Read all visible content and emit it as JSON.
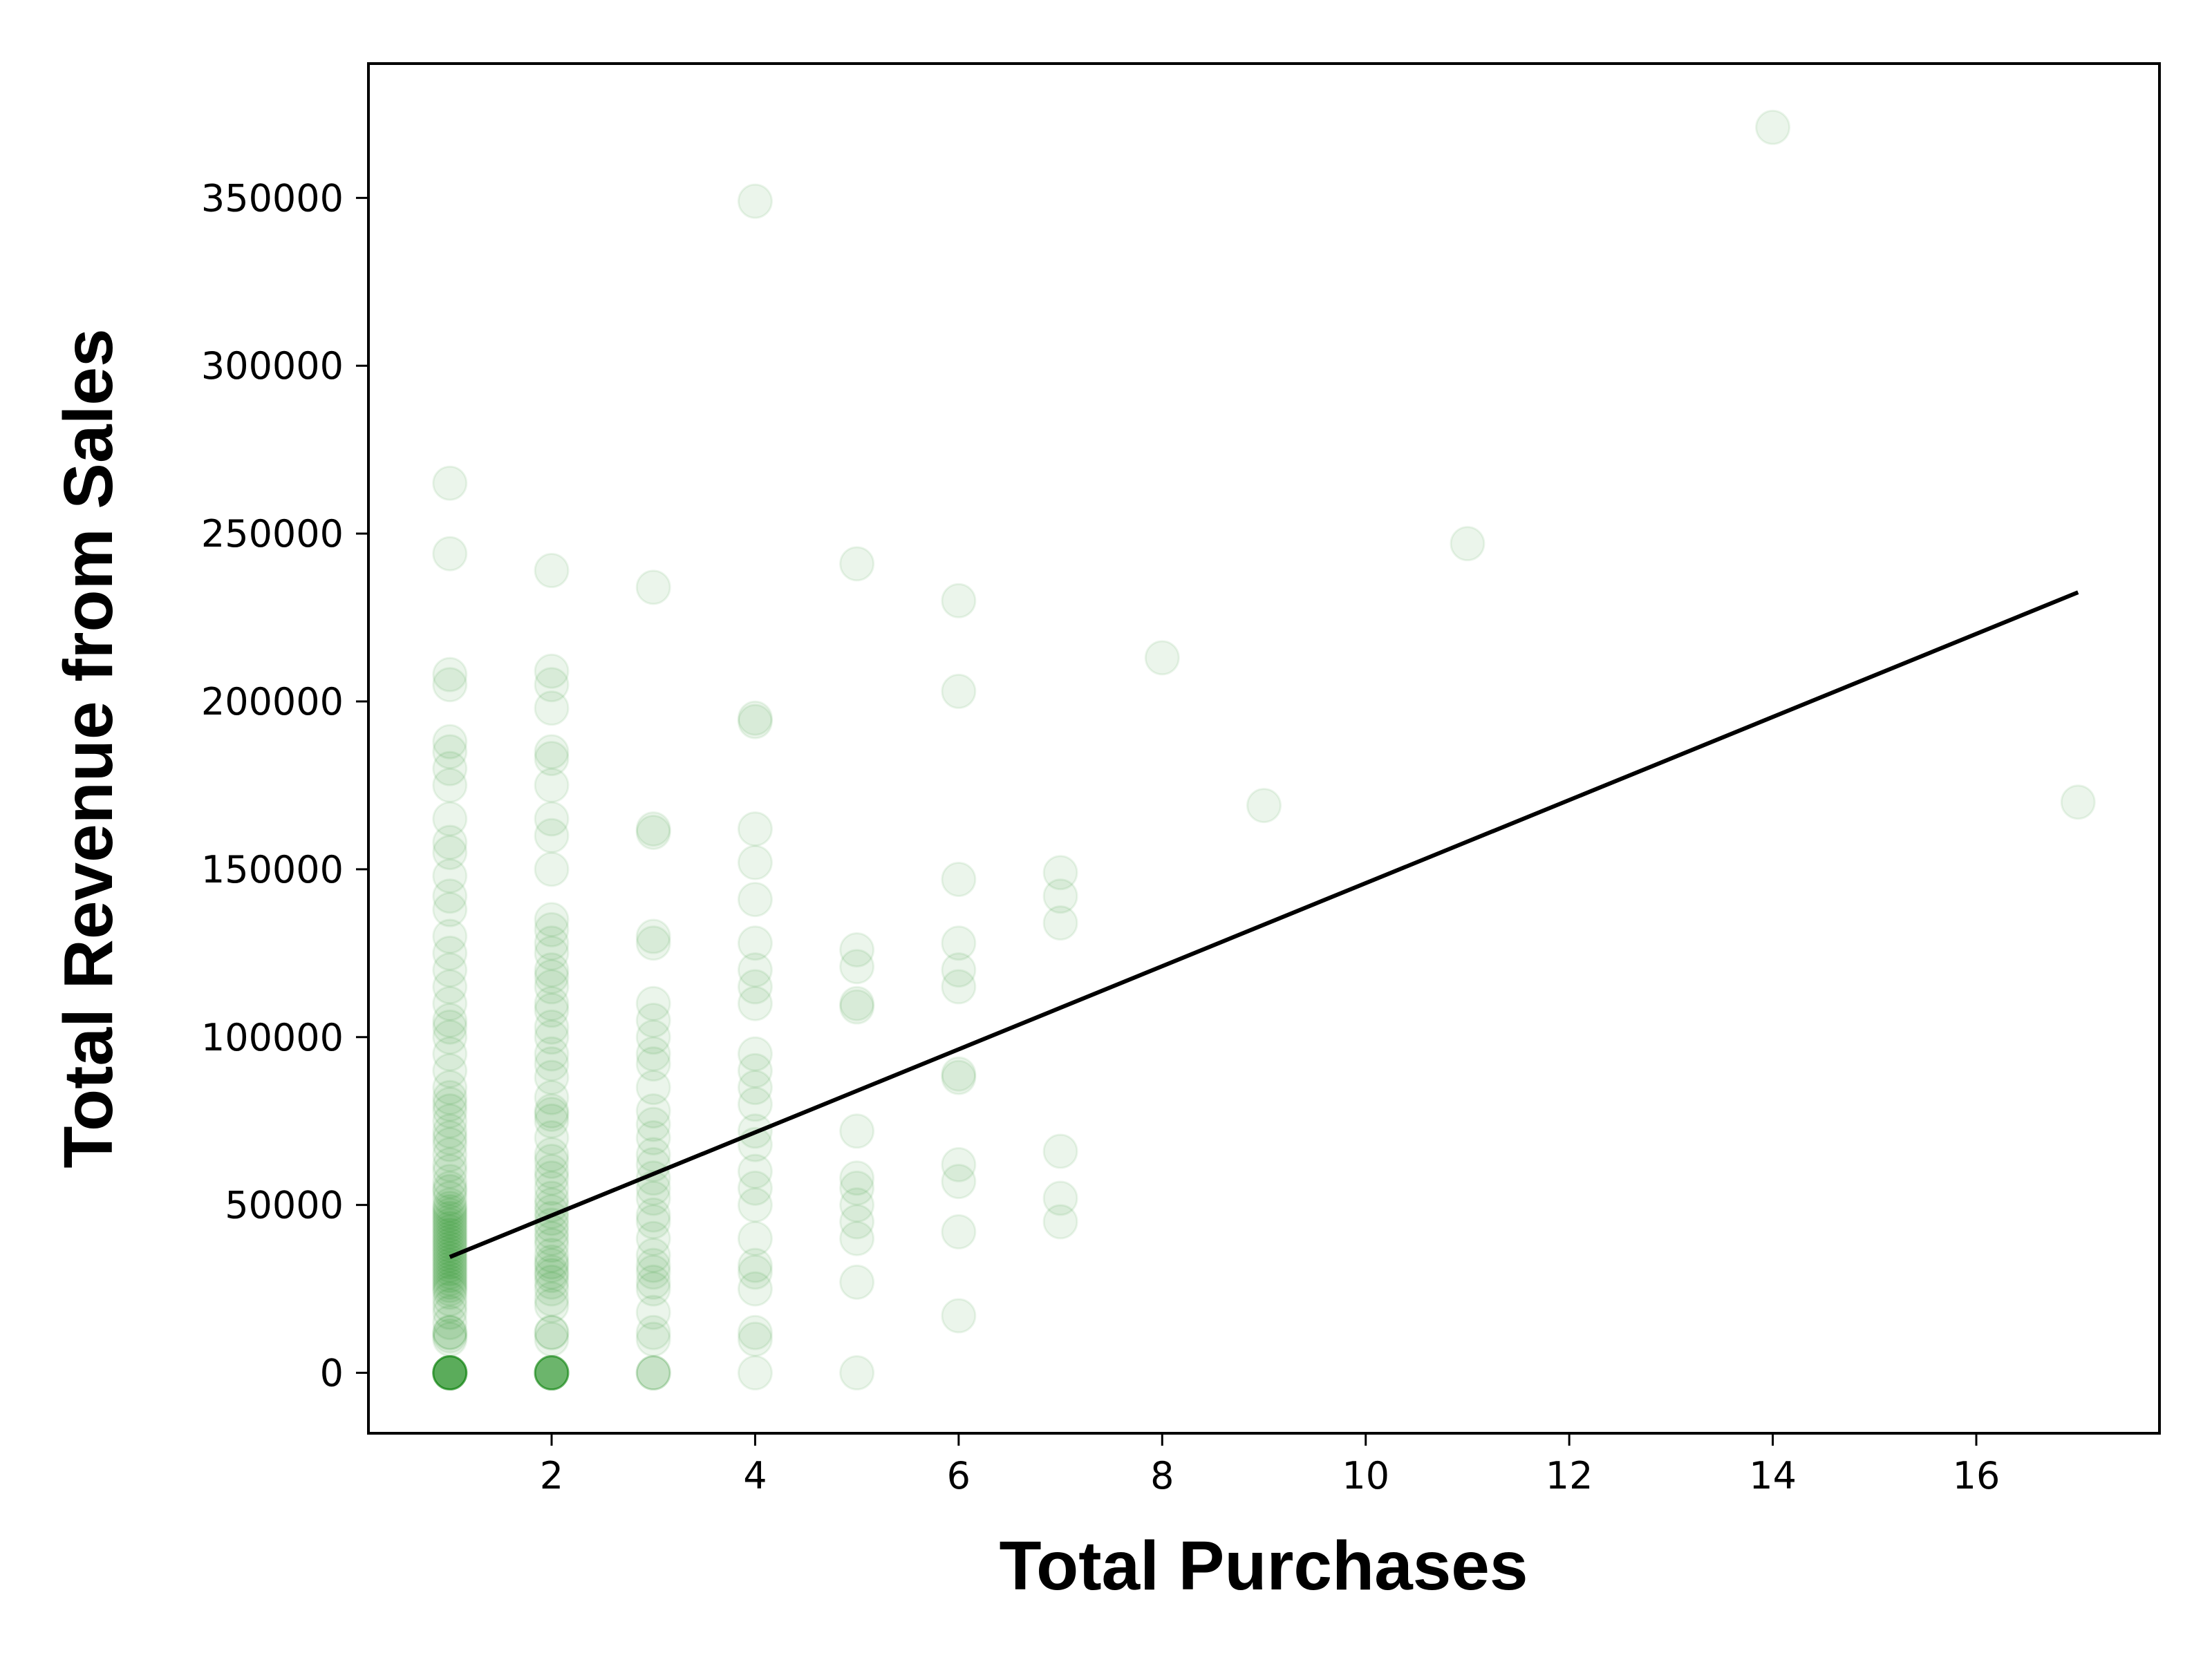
{
  "chart_data": {
    "type": "scatter",
    "title": "",
    "xlabel": "Total Purchases",
    "ylabel": "Total Revenue from Sales",
    "xlim": [
      0.2,
      17.8
    ],
    "ylim": [
      -18000,
      390000
    ],
    "xticks": [
      2,
      4,
      6,
      8,
      10,
      12,
      14,
      16
    ],
    "yticks": [
      0,
      50000,
      100000,
      150000,
      200000,
      250000,
      300000,
      350000
    ],
    "grid": false,
    "marker_color": "#008000",
    "marker_alpha": 0.08,
    "trend_color": "#000000",
    "series": [
      {
        "values": [
          [
            1,
            0
          ],
          [
            1,
            0
          ],
          [
            1,
            0
          ],
          [
            1,
            0
          ],
          [
            1,
            0
          ],
          [
            1,
            0
          ],
          [
            1,
            0
          ],
          [
            1,
            0
          ],
          [
            1,
            0
          ],
          [
            1,
            0
          ],
          [
            1,
            0
          ],
          [
            1,
            0
          ],
          [
            1,
            10000
          ],
          [
            1,
            11000
          ],
          [
            1,
            12000
          ],
          [
            1,
            12000
          ],
          [
            1,
            15000
          ],
          [
            1,
            18000
          ],
          [
            1,
            20000
          ],
          [
            1,
            22000
          ],
          [
            1,
            24000
          ],
          [
            1,
            25000
          ],
          [
            1,
            26000
          ],
          [
            1,
            27000
          ],
          [
            1,
            28000
          ],
          [
            1,
            29000
          ],
          [
            1,
            30000
          ],
          [
            1,
            31000
          ],
          [
            1,
            32000
          ],
          [
            1,
            33000
          ],
          [
            1,
            34000
          ],
          [
            1,
            35000
          ],
          [
            1,
            36000
          ],
          [
            1,
            37000
          ],
          [
            1,
            38000
          ],
          [
            1,
            39000
          ],
          [
            1,
            40000
          ],
          [
            1,
            41000
          ],
          [
            1,
            42000
          ],
          [
            1,
            43000
          ],
          [
            1,
            44000
          ],
          [
            1,
            45000
          ],
          [
            1,
            46000
          ],
          [
            1,
            47000
          ],
          [
            1,
            48000
          ],
          [
            1,
            49000
          ],
          [
            1,
            50000
          ],
          [
            1,
            52000
          ],
          [
            1,
            54000
          ],
          [
            1,
            55000
          ],
          [
            1,
            57000
          ],
          [
            1,
            60000
          ],
          [
            1,
            62000
          ],
          [
            1,
            65000
          ],
          [
            1,
            68000
          ],
          [
            1,
            70000
          ],
          [
            1,
            72000
          ],
          [
            1,
            75000
          ],
          [
            1,
            78000
          ],
          [
            1,
            80000
          ],
          [
            1,
            82000
          ],
          [
            1,
            85000
          ],
          [
            1,
            90000
          ],
          [
            1,
            95000
          ],
          [
            1,
            100000
          ],
          [
            1,
            103000
          ],
          [
            1,
            105000
          ],
          [
            1,
            110000
          ],
          [
            1,
            115000
          ],
          [
            1,
            120000
          ],
          [
            1,
            125000
          ],
          [
            1,
            130000
          ],
          [
            1,
            138000
          ],
          [
            1,
            142000
          ],
          [
            1,
            148000
          ],
          [
            1,
            155000
          ],
          [
            1,
            158000
          ],
          [
            1,
            165000
          ],
          [
            1,
            175000
          ],
          [
            1,
            180000
          ],
          [
            1,
            185000
          ],
          [
            1,
            188000
          ],
          [
            1,
            205000
          ],
          [
            1,
            208000
          ],
          [
            1,
            244000
          ],
          [
            1,
            265000
          ],
          [
            2,
            0
          ],
          [
            2,
            0
          ],
          [
            2,
            0
          ],
          [
            2,
            0
          ],
          [
            2,
            0
          ],
          [
            2,
            0
          ],
          [
            2,
            0
          ],
          [
            2,
            0
          ],
          [
            2,
            0
          ],
          [
            2,
            0
          ],
          [
            2,
            10000
          ],
          [
            2,
            12000
          ],
          [
            2,
            12000
          ],
          [
            2,
            20000
          ],
          [
            2,
            22000
          ],
          [
            2,
            25000
          ],
          [
            2,
            27000
          ],
          [
            2,
            29000
          ],
          [
            2,
            30000
          ],
          [
            2,
            32000
          ],
          [
            2,
            33000
          ],
          [
            2,
            35000
          ],
          [
            2,
            38000
          ],
          [
            2,
            40000
          ],
          [
            2,
            42000
          ],
          [
            2,
            44000
          ],
          [
            2,
            46000
          ],
          [
            2,
            48000
          ],
          [
            2,
            50000
          ],
          [
            2,
            52000
          ],
          [
            2,
            55000
          ],
          [
            2,
            58000
          ],
          [
            2,
            60000
          ],
          [
            2,
            63000
          ],
          [
            2,
            65000
          ],
          [
            2,
            70000
          ],
          [
            2,
            75000
          ],
          [
            2,
            77000
          ],
          [
            2,
            78000
          ],
          [
            2,
            82000
          ],
          [
            2,
            88000
          ],
          [
            2,
            92000
          ],
          [
            2,
            95000
          ],
          [
            2,
            100000
          ],
          [
            2,
            103000
          ],
          [
            2,
            108000
          ],
          [
            2,
            110000
          ],
          [
            2,
            115000
          ],
          [
            2,
            118000
          ],
          [
            2,
            120000
          ],
          [
            2,
            125000
          ],
          [
            2,
            128000
          ],
          [
            2,
            132000
          ],
          [
            2,
            135000
          ],
          [
            2,
            150000
          ],
          [
            2,
            160000
          ],
          [
            2,
            165000
          ],
          [
            2,
            175000
          ],
          [
            2,
            183000
          ],
          [
            2,
            185000
          ],
          [
            2,
            198000
          ],
          [
            2,
            205000
          ],
          [
            2,
            209000
          ],
          [
            2,
            239000
          ],
          [
            3,
            0
          ],
          [
            3,
            0
          ],
          [
            3,
            0
          ],
          [
            3,
            10000
          ],
          [
            3,
            12000
          ],
          [
            3,
            18000
          ],
          [
            3,
            25000
          ],
          [
            3,
            27000
          ],
          [
            3,
            30000
          ],
          [
            3,
            32000
          ],
          [
            3,
            35000
          ],
          [
            3,
            40000
          ],
          [
            3,
            45000
          ],
          [
            3,
            47000
          ],
          [
            3,
            52000
          ],
          [
            3,
            55000
          ],
          [
            3,
            58000
          ],
          [
            3,
            62000
          ],
          [
            3,
            65000
          ],
          [
            3,
            70000
          ],
          [
            3,
            74000
          ],
          [
            3,
            78000
          ],
          [
            3,
            85000
          ],
          [
            3,
            92000
          ],
          [
            3,
            95000
          ],
          [
            3,
            100000
          ],
          [
            3,
            105000
          ],
          [
            3,
            110000
          ],
          [
            3,
            128000
          ],
          [
            3,
            130000
          ],
          [
            3,
            161000
          ],
          [
            3,
            162000
          ],
          [
            3,
            234000
          ],
          [
            4,
            0
          ],
          [
            4,
            10000
          ],
          [
            4,
            12000
          ],
          [
            4,
            25000
          ],
          [
            4,
            30000
          ],
          [
            4,
            32000
          ],
          [
            4,
            40000
          ],
          [
            4,
            50000
          ],
          [
            4,
            55000
          ],
          [
            4,
            60000
          ],
          [
            4,
            68000
          ],
          [
            4,
            72000
          ],
          [
            4,
            80000
          ],
          [
            4,
            85000
          ],
          [
            4,
            90000
          ],
          [
            4,
            95000
          ],
          [
            4,
            110000
          ],
          [
            4,
            115000
          ],
          [
            4,
            120000
          ],
          [
            4,
            128000
          ],
          [
            4,
            141000
          ],
          [
            4,
            152000
          ],
          [
            4,
            162000
          ],
          [
            4,
            194000
          ],
          [
            4,
            195000
          ],
          [
            4,
            349000
          ],
          [
            5,
            0
          ],
          [
            5,
            27000
          ],
          [
            5,
            40000
          ],
          [
            5,
            45000
          ],
          [
            5,
            50000
          ],
          [
            5,
            55000
          ],
          [
            5,
            58000
          ],
          [
            5,
            72000
          ],
          [
            5,
            109000
          ],
          [
            5,
            110000
          ],
          [
            5,
            121000
          ],
          [
            5,
            126000
          ],
          [
            5,
            241000
          ],
          [
            6,
            17000
          ],
          [
            6,
            42000
          ],
          [
            6,
            57000
          ],
          [
            6,
            62000
          ],
          [
            6,
            88000
          ],
          [
            6,
            89000
          ],
          [
            6,
            115000
          ],
          [
            6,
            120000
          ],
          [
            6,
            128000
          ],
          [
            6,
            147000
          ],
          [
            6,
            203000
          ],
          [
            6,
            230000
          ],
          [
            7,
            45000
          ],
          [
            7,
            52000
          ],
          [
            7,
            66000
          ],
          [
            7,
            134000
          ],
          [
            7,
            142000
          ],
          [
            7,
            149000
          ],
          [
            8,
            213000
          ],
          [
            9,
            169000
          ],
          [
            11,
            247000
          ],
          [
            14,
            371000
          ],
          [
            17,
            170000
          ]
        ]
      }
    ],
    "trend_line": {
      "x": [
        1,
        17
      ],
      "y": [
        34500,
        232500
      ]
    }
  }
}
